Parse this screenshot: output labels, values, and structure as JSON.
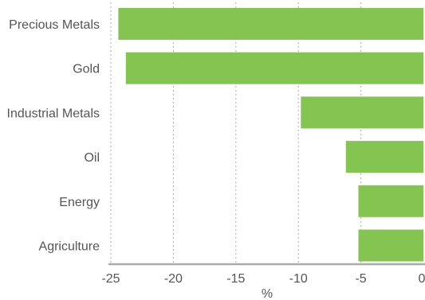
{
  "chart_data": {
    "type": "bar",
    "orientation": "horizontal",
    "categories": [
      "Precious Metals",
      "Gold",
      "Industrial Metals",
      "Oil",
      "Energy",
      "Agriculture"
    ],
    "values": [
      -24.4,
      -23.8,
      -9.8,
      -6.2,
      -5.2,
      -5.2
    ],
    "xlabel": "%",
    "ylabel": "",
    "xlim": [
      -25,
      0
    ],
    "xticks": [
      -25,
      -20,
      -15,
      -10,
      -5,
      0
    ],
    "tick_labels": [
      "-25",
      "-20",
      "-15",
      "-10",
      "-5",
      "0"
    ],
    "grid": "vertical dotted",
    "legend": "none",
    "colors": {
      "bar": "#84c450",
      "grid": "#bbbbbb",
      "axis": "#aaaaaa",
      "text": "#555555"
    }
  }
}
